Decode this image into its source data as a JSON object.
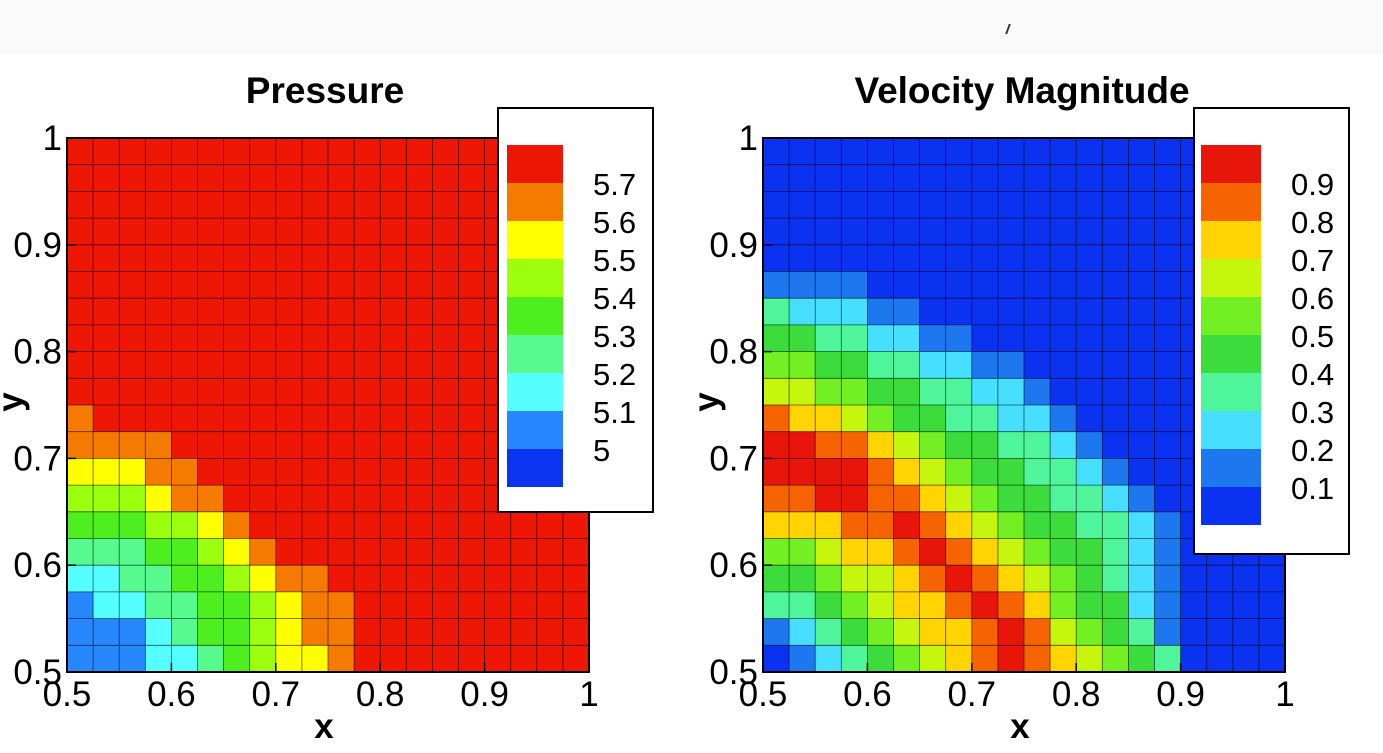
{
  "chart_data": [
    {
      "type": "heatmap",
      "title": "Pressure",
      "xlabel": "x",
      "ylabel": "y",
      "xlim": [
        0.5,
        1
      ],
      "ylim": [
        0.5,
        1
      ],
      "xticks": [
        "0.5",
        "0.6",
        "0.7",
        "0.8",
        "0.9",
        "1"
      ],
      "yticks": [
        "0.5",
        "0.6",
        "0.7",
        "0.8",
        "0.9",
        "1"
      ],
      "grid": "20x20 cells",
      "legend": "top-right",
      "levels": [
        {
          "label": "",
          "color": "#ee1605"
        },
        {
          "label": "5.7",
          "color": "#f57b00"
        },
        {
          "label": "5.6",
          "color": "#ffff00"
        },
        {
          "label": "5.5",
          "color": "#9bff0e"
        },
        {
          "label": "5.4",
          "color": "#4fee1f"
        },
        {
          "label": "5.3",
          "color": "#56fa8f"
        },
        {
          "label": "5.2",
          "color": "#56ffff"
        },
        {
          "label": "5.1",
          "color": "#2787ff"
        },
        {
          "label": "5",
          "color": "#0a34f0"
        }
      ],
      "level_index_rows_top_to_bottom": [
        "00000000000000000000",
        "00000000000000000000",
        "00000000000000000000",
        "00000000000000000000",
        "00000000000000000000",
        "00000000000000000000",
        "00000000000000000000",
        "00000000000000000000",
        "00000000000000000000",
        "00000000000000000000",
        "10000000000000000000",
        "11110000000000000000",
        "22211000000000000000",
        "33321100000000000000",
        "44433210000000000000",
        "55544321000000000000",
        "66554432110000000000",
        "76655443211000000000",
        "77765443211000000000",
        "77766543221000000000"
      ]
    },
    {
      "type": "heatmap",
      "title": "Velocity Magnitude",
      "xlabel": "x",
      "ylabel": "y",
      "xlim": [
        0.5,
        1
      ],
      "ylim": [
        0.5,
        1
      ],
      "xticks": [
        "0.5",
        "0.6",
        "0.7",
        "0.8",
        "0.9",
        "1"
      ],
      "yticks": [
        "0.5",
        "0.6",
        "0.7",
        "0.8",
        "0.9",
        "1"
      ],
      "grid": "20x20 cells",
      "legend": "top-right",
      "levels": [
        {
          "label": "",
          "color": "#e8150b"
        },
        {
          "label": "0.9",
          "color": "#f56400"
        },
        {
          "label": "0.8",
          "color": "#ffd400"
        },
        {
          "label": "0.7",
          "color": "#c6f50e"
        },
        {
          "label": "0.6",
          "color": "#73f023"
        },
        {
          "label": "0.5",
          "color": "#3bdc3b"
        },
        {
          "label": "0.4",
          "color": "#4ef59a"
        },
        {
          "label": "0.3",
          "color": "#47dfff"
        },
        {
          "label": "0.2",
          "color": "#1d78f0"
        },
        {
          "label": "0.1",
          "color": "#0a32f0"
        }
      ],
      "level_index_rows_top_to_bottom": [
        "99999999999999999999",
        "99999999999999999999",
        "99999999999999999999",
        "99999999999999999999",
        "99999999999999999999",
        "88889999999999999999",
        "67778899999999999999",
        "55667788999999999999",
        "44556677889999999999",
        "33445566778999999999",
        "12234556677899999999",
        "00112345566789999999",
        "00001234556678999999",
        "11001123455667899999",
        "22211012345566789999",
        "44322101234556789999",
        "55433210123456789999",
        "66543221012455789999",
        "87654322101345689999",
        "98765432101234569999"
      ]
    }
  ]
}
